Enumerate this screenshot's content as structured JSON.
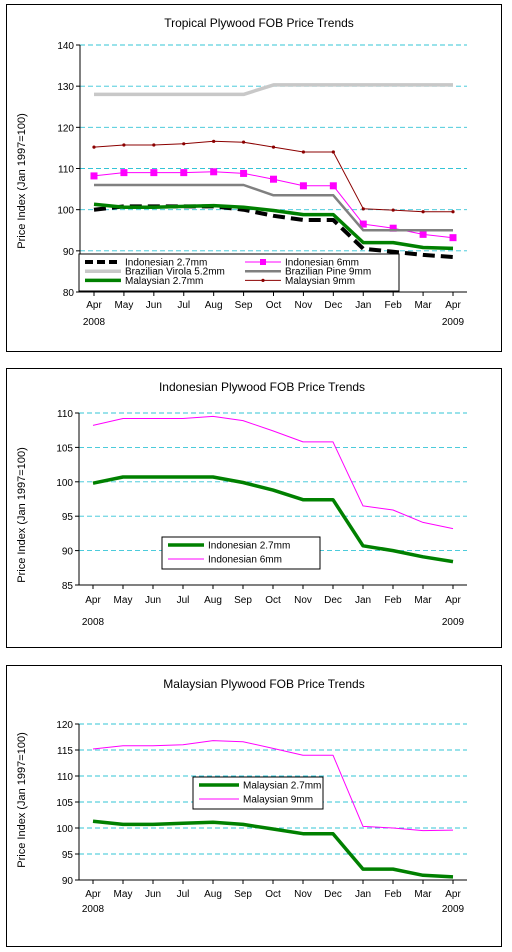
{
  "chart_data": [
    {
      "type": "line",
      "title": "Tropical Plywood FOB Price Trends",
      "ylabel": "Price Index (Jan 1997=100)",
      "xlabel": "",
      "ylim": [
        80,
        140
      ],
      "ystep": 10,
      "grid": "horizontal dashed",
      "legend_position": "bottom-left",
      "categories": [
        "Apr",
        "May",
        "Jun",
        "Jul",
        "Aug",
        "Sep",
        "Oct",
        "Nov",
        "Dec",
        "Jan",
        "Feb",
        "Mar",
        "Apr"
      ],
      "year_labels": {
        "first": "2008",
        "last": "2009"
      },
      "series": [
        {
          "name": "Indonesian 2.7mm",
          "color": "#000000",
          "style": "dashed-thick",
          "marker": "none",
          "values": [
            100.0,
            100.8,
            100.8,
            100.8,
            100.8,
            100.0,
            98.5,
            97.5,
            97.5,
            90.5,
            89.8,
            89.0,
            88.5
          ]
        },
        {
          "name": "Indonesian 6mm",
          "color": "#ff00ff",
          "style": "solid",
          "marker": "square",
          "values": [
            108.2,
            109.0,
            109.0,
            109.0,
            109.2,
            108.8,
            107.4,
            105.8,
            105.8,
            96.5,
            95.5,
            94.0,
            93.2
          ]
        },
        {
          "name": "Brazilian Virola 5.2mm",
          "color": "#c8c8c8",
          "style": "solid-thick",
          "marker": "none",
          "values": [
            128,
            128,
            128,
            128,
            128,
            128,
            130.3,
            130.3,
            130.3,
            130.3,
            130.3,
            130.3,
            130.3
          ]
        },
        {
          "name": "Brazilian Pine 9mm",
          "color": "#808080",
          "style": "solid-medium",
          "marker": "none",
          "values": [
            106,
            106,
            106,
            106,
            106,
            106,
            103.5,
            103.5,
            103.5,
            95,
            95,
            95,
            95
          ]
        },
        {
          "name": "Malaysian 2.7mm",
          "color": "#008000",
          "style": "solid-thick",
          "marker": "none",
          "values": [
            101.3,
            100.6,
            100.6,
            100.8,
            101.0,
            100.6,
            99.8,
            98.8,
            98.8,
            92.0,
            92.0,
            90.8,
            90.6
          ]
        },
        {
          "name": "Malaysian 9mm",
          "color": "#8b0000",
          "style": "solid",
          "marker": "dot",
          "values": [
            115.2,
            115.7,
            115.7,
            116.0,
            116.6,
            116.4,
            115.2,
            114.0,
            114.0,
            100.2,
            99.9,
            99.5,
            99.5
          ]
        }
      ]
    },
    {
      "type": "line",
      "title": "Indonesian Plywood FOB Price Trends",
      "ylabel": "Price Index (Jan 1997=100)",
      "xlabel": "",
      "ylim": [
        85,
        110
      ],
      "ystep": 5,
      "grid": "horizontal dashed",
      "legend_position": "bottom-left",
      "categories": [
        "Apr",
        "May",
        "Jun",
        "Jul",
        "Aug",
        "Sep",
        "Oct",
        "Nov",
        "Dec",
        "Jan",
        "Feb",
        "Mar",
        "Apr"
      ],
      "year_labels": {
        "first": "2008",
        "last": "2009"
      },
      "series": [
        {
          "name": "Indonesian 2.7mm",
          "color": "#008000",
          "style": "solid-thick",
          "marker": "none",
          "values": [
            99.8,
            100.7,
            100.7,
            100.7,
            100.7,
            99.9,
            98.8,
            97.4,
            97.4,
            90.7,
            90.0,
            89.1,
            88.4
          ]
        },
        {
          "name": "Indonesian 6mm",
          "color": "#ff00ff",
          "style": "solid",
          "marker": "none",
          "values": [
            108.2,
            109.2,
            109.2,
            109.2,
            109.5,
            108.9,
            107.4,
            105.8,
            105.8,
            96.5,
            95.9,
            94.1,
            93.2
          ]
        }
      ]
    },
    {
      "type": "line",
      "title": "Malaysian Plywood FOB Price Trends",
      "ylabel": "Price Index (Jan 1997=100)",
      "xlabel": "",
      "ylim": [
        90,
        120
      ],
      "ystep": 5,
      "grid": "horizontal dashed",
      "legend_position": "center-left",
      "categories": [
        "Apr",
        "May",
        "Jun",
        "Jul",
        "Aug",
        "Sep",
        "Oct",
        "Nov",
        "Dec",
        "Jan",
        "Feb",
        "Mar",
        "Apr"
      ],
      "year_labels": {
        "first": "2008",
        "last": "2009"
      },
      "series": [
        {
          "name": "Malaysian 2.7mm",
          "color": "#008000",
          "style": "solid-thick",
          "marker": "none",
          "values": [
            101.3,
            100.7,
            100.7,
            100.9,
            101.1,
            100.7,
            99.8,
            98.9,
            98.9,
            92.1,
            92.1,
            90.9,
            90.6
          ]
        },
        {
          "name": "Malaysian 9mm",
          "color": "#ff00ff",
          "style": "solid",
          "marker": "none",
          "values": [
            115.2,
            115.8,
            115.8,
            116.0,
            116.8,
            116.6,
            115.3,
            114.0,
            114.0,
            100.3,
            100.0,
            99.5,
            99.6
          ]
        }
      ]
    }
  ]
}
